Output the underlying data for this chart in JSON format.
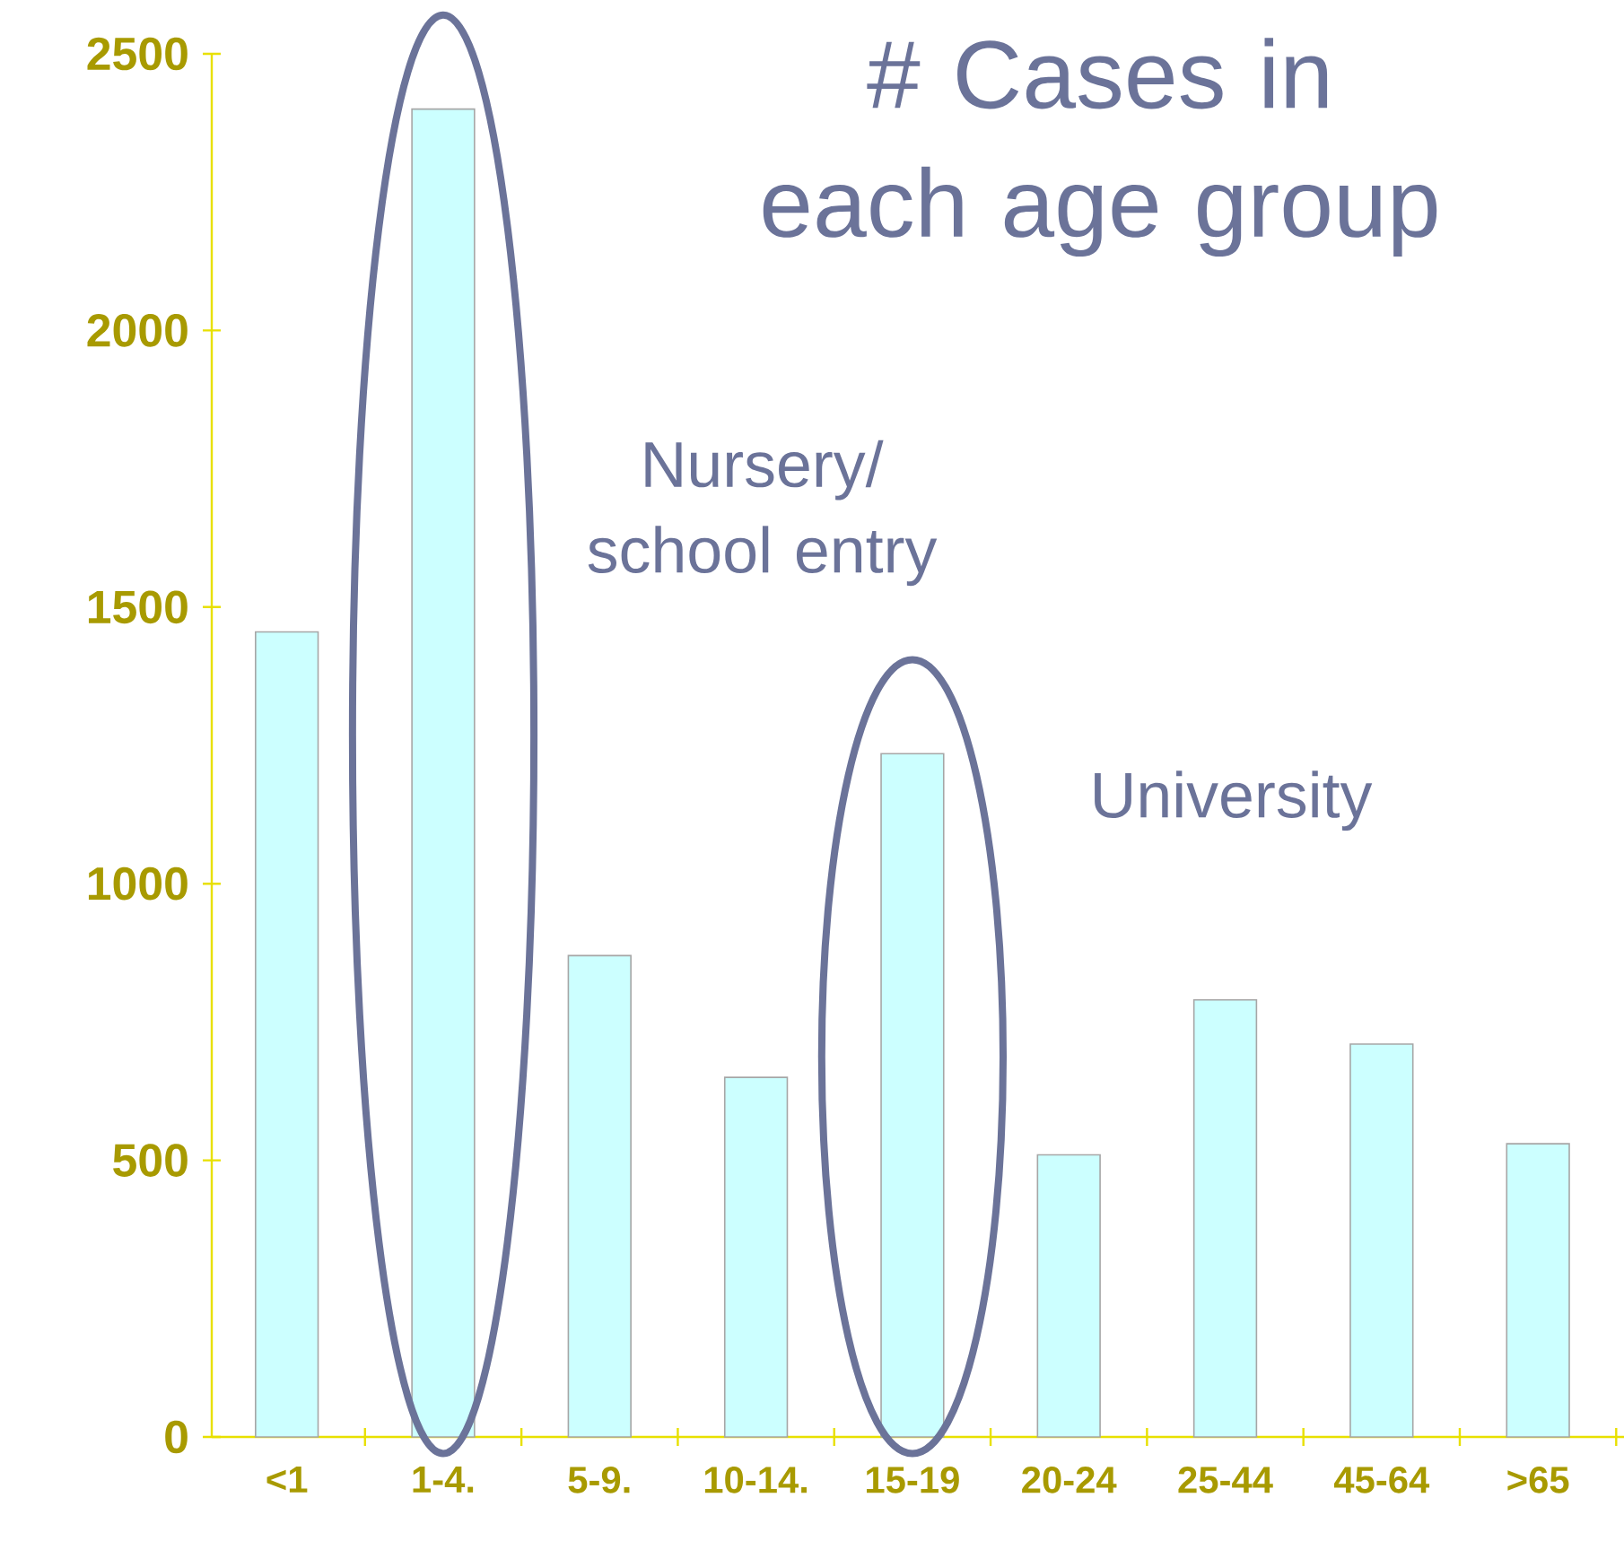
{
  "chart_data": {
    "type": "bar",
    "title": "# Cases in each age group",
    "categories": [
      "<1",
      "1-4.",
      "5-9.",
      "10-14.",
      "15-19",
      "20-24",
      "25-44",
      "45-64",
      ">65"
    ],
    "values": [
      1455,
      2400,
      870,
      650,
      1235,
      510,
      790,
      710,
      530
    ],
    "color": "#ccffff",
    "ylim": [
      0,
      2500
    ],
    "yticks": [
      0,
      500,
      1000,
      1500,
      2000,
      2500
    ],
    "annotations": [
      "Nursery/ school entry",
      "University"
    ]
  }
}
